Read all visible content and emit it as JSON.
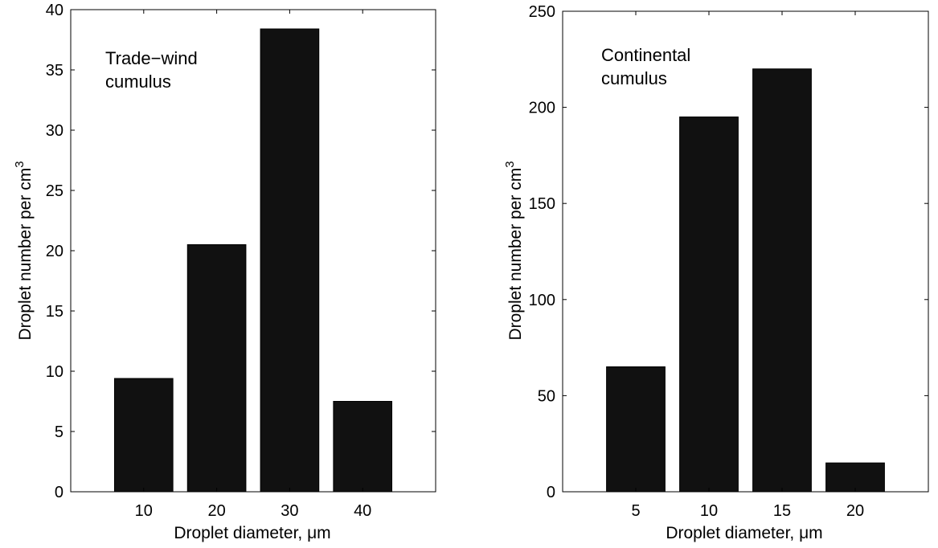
{
  "colors": {
    "bar": "#111111",
    "axis": "#000000",
    "background": "#ffffff"
  },
  "chart_data": [
    {
      "type": "bar",
      "categories": [
        "10",
        "20",
        "30",
        "40"
      ],
      "x": [
        10,
        20,
        30,
        40
      ],
      "values": [
        9.4,
        20.5,
        38.4,
        7.5
      ],
      "xlim": [
        0,
        50
      ],
      "ylim": [
        0,
        40
      ],
      "yticks": [
        "0",
        "5",
        "10",
        "15",
        "20",
        "25",
        "30",
        "35",
        "40"
      ],
      "xlabel": "Droplet diameter, μm",
      "ylabel": "Droplet number per cm",
      "ylabel_superscript": "3",
      "annotation": [
        "Trade−wind",
        "cumulus"
      ],
      "grid": false,
      "legend": "none"
    },
    {
      "type": "bar",
      "categories": [
        "5",
        "10",
        "15",
        "20"
      ],
      "x": [
        5,
        10,
        15,
        20
      ],
      "values": [
        65,
        195,
        220,
        15
      ],
      "xlim": [
        0,
        25
      ],
      "ylim": [
        0,
        250
      ],
      "yticks": [
        "0",
        "50",
        "100",
        "150",
        "200",
        "250"
      ],
      "xlabel": "Droplet diameter, μm",
      "ylabel": "Droplet number per cm",
      "ylabel_superscript": "3",
      "annotation": [
        "Continental",
        "cumulus"
      ],
      "grid": false,
      "legend": "none"
    }
  ]
}
